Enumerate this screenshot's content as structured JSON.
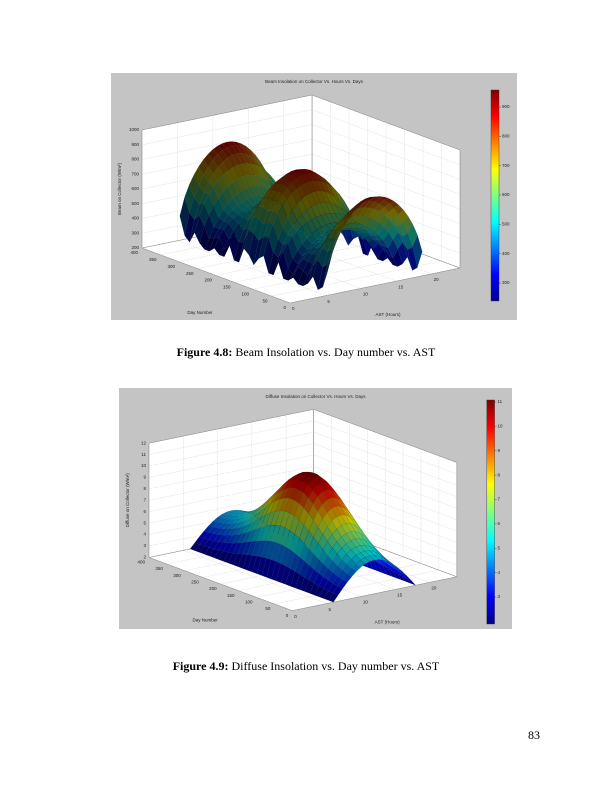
{
  "figures": [
    {
      "title": "Beam Insolation on Collector Vs. Hours Vs. Days",
      "z_label": "Beam on Collector (W/m²)",
      "x_label": "AST (Hours)",
      "y_label": "Day Number",
      "z_ticks": [
        1000,
        900,
        800,
        700,
        600,
        500,
        400,
        300,
        200
      ],
      "day_ticks": [
        400,
        350,
        300,
        250,
        200,
        150,
        100,
        50,
        0
      ],
      "hour_ticks": [
        0,
        5,
        10,
        15,
        20
      ],
      "colorbar_ticks": [
        900,
        800,
        700,
        600,
        500,
        400,
        300
      ],
      "caption_label": "Figure 4.8:",
      "caption_text": "Beam Insolation vs. Day number vs. AST"
    },
    {
      "title": "Diffuse Insolation on Collector Vs. Hours Vs. Days",
      "z_label": "Diffuse on Collector (W/m²)",
      "x_label": "AST (Hours)",
      "y_label": "Day Number",
      "z_ticks": [
        12,
        11,
        10,
        9,
        8,
        7,
        6,
        5,
        4,
        3,
        2
      ],
      "day_ticks": [
        400,
        350,
        300,
        250,
        200,
        150,
        100,
        50,
        0
      ],
      "hour_ticks": [
        0,
        5,
        10,
        15,
        20
      ],
      "colorbar_ticks": [
        11,
        10,
        9,
        8,
        7,
        6,
        5,
        4,
        3
      ],
      "caption_label": "Figure 4.9:",
      "caption_text": "Diffuse Insolation vs. Day number vs. AST"
    }
  ],
  "page_number": "83"
}
